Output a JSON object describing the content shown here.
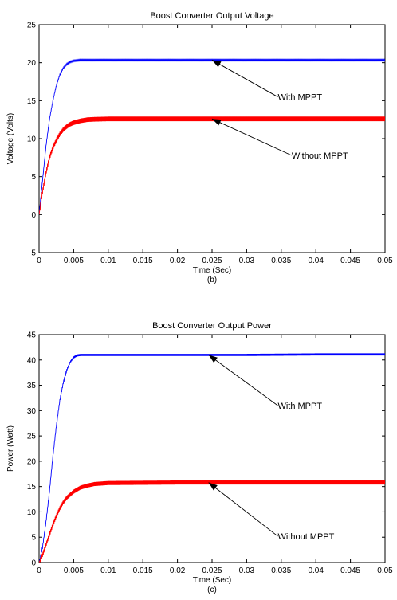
{
  "chart_data": [
    {
      "type": "line",
      "title": "Boost Converter Output Voltage",
      "xlabel": "Time (Sec)",
      "ylabel": "Voltage (Volts)",
      "caption": "(b)",
      "xlim": [
        0,
        0.05
      ],
      "ylim": [
        -5,
        25
      ],
      "x_ticks": [
        0,
        0.005,
        0.01,
        0.015,
        0.02,
        0.025,
        0.03,
        0.035,
        0.04,
        0.045,
        0.05
      ],
      "x_tick_labels": [
        "0",
        "0.005",
        "0.01",
        "0.015",
        "0.02",
        "0.025",
        "0.03",
        "0.035",
        "0.04",
        "0.045",
        "0.05"
      ],
      "y_ticks": [
        -5,
        0,
        5,
        10,
        15,
        20,
        25
      ],
      "y_tick_labels": [
        "-5",
        "0",
        "5",
        "10",
        "15",
        "20",
        "25"
      ],
      "grid": false,
      "series": [
        {
          "color": "#0000ff",
          "x": [
            0,
            0.0005,
            0.001,
            0.0015,
            0.002,
            0.0025,
            0.003,
            0.0035,
            0.004,
            0.0045,
            0.005,
            0.0055,
            0.006,
            0.007,
            0.01,
            0.02,
            0.03,
            0.04,
            0.05
          ],
          "values": [
            0,
            4.5,
            9,
            12.5,
            15,
            17,
            18.4,
            19.3,
            19.8,
            20.1,
            20.25,
            20.3,
            20.35,
            20.35,
            20.35,
            20.35,
            20.35,
            20.35,
            20.35
          ],
          "ripple": 0.08
        },
        {
          "color": "#ff0000",
          "x": [
            0,
            0.0005,
            0.001,
            0.0015,
            0.002,
            0.0025,
            0.003,
            0.0035,
            0.004,
            0.0045,
            0.005,
            0.006,
            0.007,
            0.008,
            0.01,
            0.02,
            0.03,
            0.04,
            0.05
          ],
          "values": [
            0,
            3,
            5.5,
            7.5,
            8.8,
            9.8,
            10.6,
            11.2,
            11.6,
            11.9,
            12.1,
            12.35,
            12.5,
            12.55,
            12.6,
            12.6,
            12.6,
            12.6,
            12.6
          ],
          "ripple": 0.3
        }
      ],
      "annotations": [
        {
          "text": "With MPPT",
          "arrow_to": [
            0.025,
            20.35
          ],
          "text_at": [
            0.0345,
            15.5
          ]
        },
        {
          "text": "Without MPPT",
          "arrow_to": [
            0.025,
            12.6
          ],
          "text_at": [
            0.0365,
            7.8
          ]
        }
      ]
    },
    {
      "type": "line",
      "title": "Boost Converter Output Power",
      "xlabel": "Time (Sec)",
      "ylabel": "Power (Watt)",
      "caption": "(c)",
      "xlim": [
        0,
        0.05
      ],
      "ylim": [
        0,
        45
      ],
      "x_ticks": [
        0,
        0.005,
        0.01,
        0.015,
        0.02,
        0.025,
        0.03,
        0.035,
        0.04,
        0.045,
        0.05
      ],
      "x_tick_labels": [
        "0",
        "0.005",
        "0.01",
        "0.015",
        "0.02",
        "0.025",
        "0.03",
        "0.035",
        "0.04",
        "0.045",
        "0.05"
      ],
      "y_ticks": [
        0,
        5,
        10,
        15,
        20,
        25,
        30,
        35,
        40,
        45
      ],
      "y_tick_labels": [
        "0",
        "5",
        "10",
        "15",
        "20",
        "25",
        "30",
        "35",
        "40",
        "45"
      ],
      "grid": false,
      "series": [
        {
          "color": "#0000ff",
          "x": [
            0,
            0.0005,
            0.001,
            0.0015,
            0.002,
            0.0025,
            0.003,
            0.0035,
            0.004,
            0.0045,
            0.005,
            0.0055,
            0.006,
            0.007,
            0.01,
            0.02,
            0.03,
            0.04,
            0.05
          ],
          "values": [
            0,
            3,
            8,
            14,
            21,
            27,
            32,
            35.5,
            38,
            39.6,
            40.5,
            40.9,
            41,
            41,
            41,
            41,
            41,
            41.1,
            41.1
          ],
          "ripple": 0.2
        },
        {
          "color": "#ff0000",
          "x": [
            0,
            0.0005,
            0.001,
            0.0015,
            0.002,
            0.0025,
            0.003,
            0.0035,
            0.004,
            0.005,
            0.006,
            0.007,
            0.008,
            0.01,
            0.02,
            0.03,
            0.04,
            0.05
          ],
          "values": [
            0,
            1.5,
            3.5,
            5.5,
            7.5,
            9.2,
            10.7,
            11.9,
            12.8,
            14,
            14.8,
            15.2,
            15.5,
            15.7,
            15.8,
            15.8,
            15.8,
            15.8
          ],
          "ripple": 0.4
        }
      ],
      "annotations": [
        {
          "text": "With MPPT",
          "arrow_to": [
            0.0245,
            41
          ],
          "text_at": [
            0.0345,
            31
          ]
        },
        {
          "text": "Without MPPT",
          "arrow_to": [
            0.0245,
            15.8
          ],
          "text_at": [
            0.0345,
            5.2
          ]
        }
      ]
    }
  ]
}
